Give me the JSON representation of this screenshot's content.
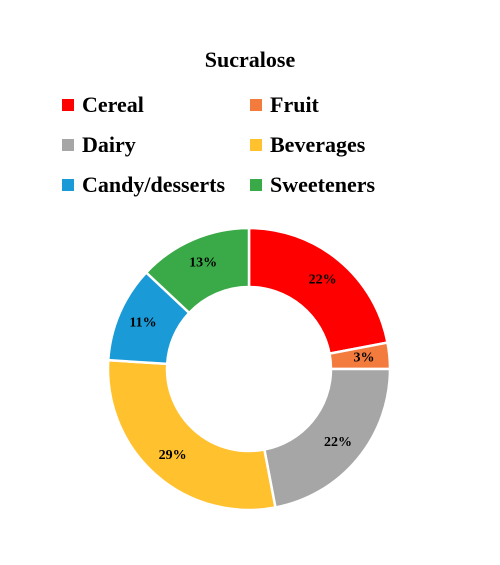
{
  "chart_data": {
    "type": "pie",
    "title": "Sucralose",
    "donut": true,
    "legend_position": "top",
    "categories": [
      "Cereal",
      "Fruit",
      "Dairy",
      "Beverages",
      "Candy/desserts",
      "Sweeteners"
    ],
    "values": [
      22,
      3,
      22,
      29,
      11,
      13
    ],
    "labels": [
      "22%",
      "3%",
      "22%",
      "29%",
      "11%",
      "13%"
    ],
    "colors": [
      "#ff0000",
      "#f47b3e",
      "#a6a6a6",
      "#ffc12e",
      "#1a9ad6",
      "#3aaa48"
    ]
  }
}
